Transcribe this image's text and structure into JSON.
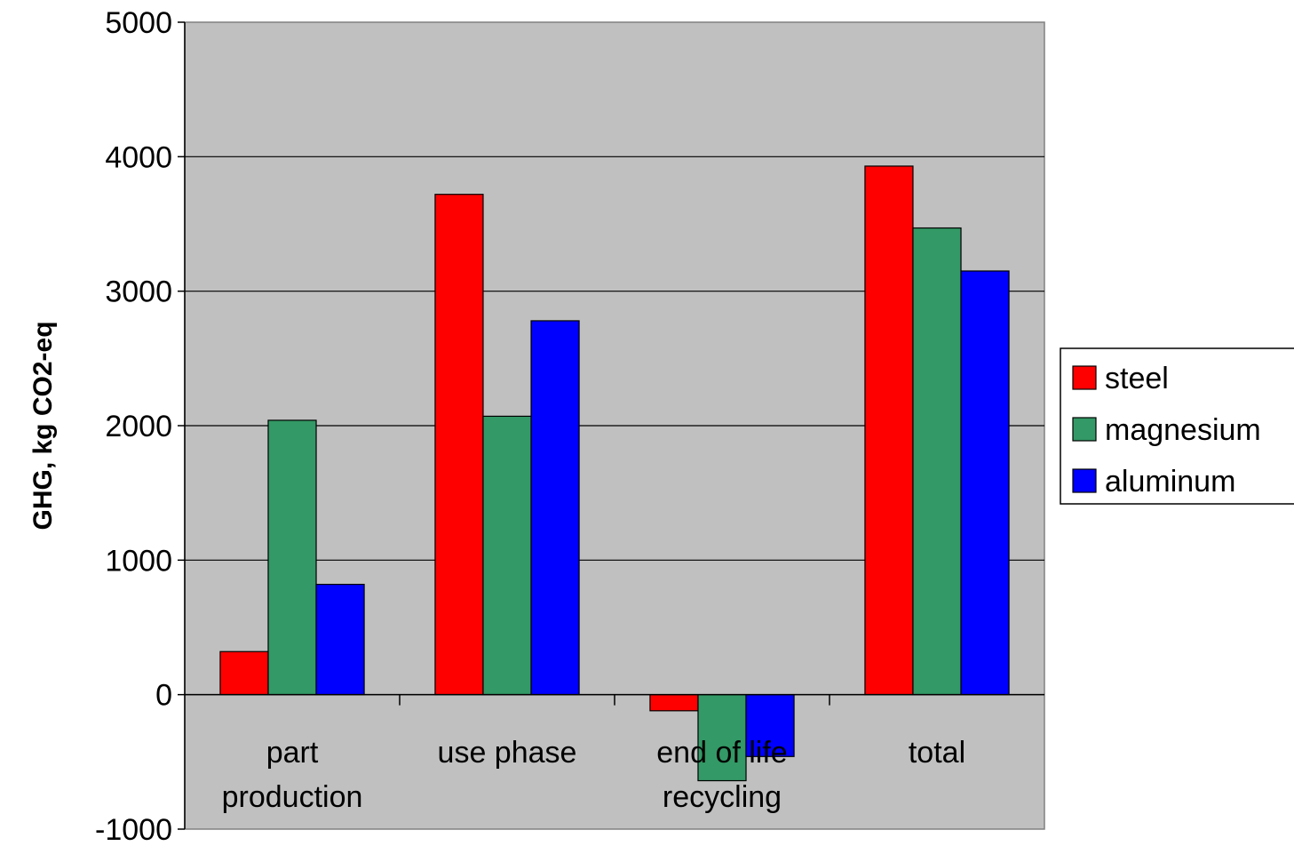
{
  "chart_data": {
    "type": "bar",
    "title": "",
    "xlabel": "",
    "ylabel": "GHG, kg CO2-eq",
    "categories": [
      [
        "part",
        "production"
      ],
      [
        "use phase"
      ],
      [
        "end of life",
        "recycling"
      ],
      [
        "total"
      ]
    ],
    "series": [
      {
        "name": "steel",
        "color": "#ff0000",
        "values": [
          320,
          3720,
          -120,
          3930
        ]
      },
      {
        "name": "magnesium",
        "color": "#339966",
        "values": [
          2040,
          2070,
          -640,
          3470
        ]
      },
      {
        "name": "aluminum",
        "color": "#0000ff",
        "values": [
          820,
          2780,
          -460,
          3150
        ]
      }
    ],
    "ylim": [
      -1000,
      5000
    ],
    "yticks": [
      -1000,
      0,
      1000,
      2000,
      3000,
      4000,
      5000
    ],
    "grid": true,
    "legend": "right",
    "plot_background": "#c0c0c0"
  }
}
